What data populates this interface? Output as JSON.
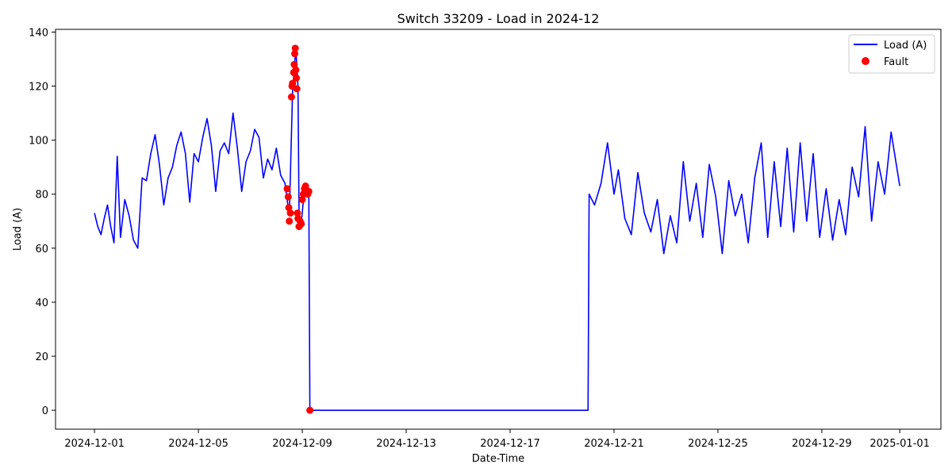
{
  "chart_data": {
    "type": "line",
    "title": "Switch 33209 - Load in 2024-12",
    "xlabel": "Date-Time",
    "ylabel": "Load (A)",
    "xlim": [
      "2024-11-29T12:00",
      "2025-01-02T14:00"
    ],
    "ylim": [
      -7,
      141
    ],
    "x_ticks": [
      "2024-12-01",
      "2024-12-05",
      "2024-12-09",
      "2024-12-13",
      "2024-12-17",
      "2024-12-21",
      "2024-12-25",
      "2024-12-29",
      "2025-01-01"
    ],
    "y_ticks": [
      0,
      20,
      40,
      60,
      80,
      100,
      120,
      140
    ],
    "grid": false,
    "legend_position": "top-right",
    "legend": [
      "Load (A)",
      "Fault"
    ],
    "colors": {
      "line": "#0000ff",
      "fault": "#ff0000"
    },
    "series": [
      {
        "name": "Load (A)",
        "style": "line",
        "points": [
          [
            "2024-12-01T00:00",
            73
          ],
          [
            "2024-12-01T03:00",
            68
          ],
          [
            "2024-12-01T06:00",
            65
          ],
          [
            "2024-12-01T09:00",
            71
          ],
          [
            "2024-12-01T12:00",
            76
          ],
          [
            "2024-12-01T15:00",
            68
          ],
          [
            "2024-12-01T18:00",
            62
          ],
          [
            "2024-12-01T21:00",
            94
          ],
          [
            "2024-12-02T00:00",
            64
          ],
          [
            "2024-12-02T04:00",
            78
          ],
          [
            "2024-12-02T08:00",
            72
          ],
          [
            "2024-12-02T12:00",
            63
          ],
          [
            "2024-12-02T16:00",
            60
          ],
          [
            "2024-12-02T20:00",
            86
          ],
          [
            "2024-12-03T00:00",
            85
          ],
          [
            "2024-12-03T04:00",
            95
          ],
          [
            "2024-12-03T08:00",
            102
          ],
          [
            "2024-12-03T12:00",
            91
          ],
          [
            "2024-12-03T16:00",
            76
          ],
          [
            "2024-12-03T20:00",
            86
          ],
          [
            "2024-12-04T00:00",
            90
          ],
          [
            "2024-12-04T04:00",
            98
          ],
          [
            "2024-12-04T08:00",
            103
          ],
          [
            "2024-12-04T12:00",
            95
          ],
          [
            "2024-12-04T16:00",
            77
          ],
          [
            "2024-12-04T20:00",
            95
          ],
          [
            "2024-12-05T00:00",
            92
          ],
          [
            "2024-12-05T04:00",
            101
          ],
          [
            "2024-12-05T08:00",
            108
          ],
          [
            "2024-12-05T12:00",
            98
          ],
          [
            "2024-12-05T16:00",
            81
          ],
          [
            "2024-12-05T20:00",
            96
          ],
          [
            "2024-12-06T00:00",
            99
          ],
          [
            "2024-12-06T04:00",
            95
          ],
          [
            "2024-12-06T08:00",
            110
          ],
          [
            "2024-12-06T12:00",
            97
          ],
          [
            "2024-12-06T16:00",
            81
          ],
          [
            "2024-12-06T20:00",
            92
          ],
          [
            "2024-12-07T00:00",
            96
          ],
          [
            "2024-12-07T04:00",
            104
          ],
          [
            "2024-12-07T08:00",
            101
          ],
          [
            "2024-12-07T12:00",
            86
          ],
          [
            "2024-12-07T16:00",
            93
          ],
          [
            "2024-12-07T20:00",
            89
          ],
          [
            "2024-12-08T00:00",
            97
          ],
          [
            "2024-12-08T04:00",
            87
          ],
          [
            "2024-12-08T08:00",
            84
          ],
          [
            "2024-12-08T12:00",
            72
          ],
          [
            "2024-12-08T15:00",
            118
          ],
          [
            "2024-12-08T18:00",
            134
          ],
          [
            "2024-12-08T20:00",
            120
          ],
          [
            "2024-12-08T21:00",
            72
          ],
          [
            "2024-12-08T23:00",
            69
          ],
          [
            "2024-12-09T02:00",
            82
          ],
          [
            "2024-12-09T04:00",
            80
          ],
          [
            "2024-12-09T06:00",
            82
          ],
          [
            "2024-12-09T07:00",
            0
          ],
          [
            "2024-12-10T00:00",
            0
          ],
          [
            "2024-12-14T00:00",
            0
          ],
          [
            "2024-12-18T00:00",
            0
          ],
          [
            "2024-12-19T00:00",
            0
          ],
          [
            "2024-12-19T12:00",
            0
          ],
          [
            "2024-12-20T00:00",
            0
          ],
          [
            "2024-12-20T01:00",
            80
          ],
          [
            "2024-12-20T06:00",
            76
          ],
          [
            "2024-12-20T12:00",
            84
          ],
          [
            "2024-12-20T18:00",
            99
          ],
          [
            "2024-12-21T00:00",
            80
          ],
          [
            "2024-12-21T04:00",
            89
          ],
          [
            "2024-12-21T10:00",
            71
          ],
          [
            "2024-12-21T16:00",
            65
          ],
          [
            "2024-12-21T22:00",
            88
          ],
          [
            "2024-12-22T04:00",
            73
          ],
          [
            "2024-12-22T10:00",
            66
          ],
          [
            "2024-12-22T16:00",
            78
          ],
          [
            "2024-12-22T22:00",
            58
          ],
          [
            "2024-12-23T04:00",
            72
          ],
          [
            "2024-12-23T10:00",
            62
          ],
          [
            "2024-12-23T16:00",
            92
          ],
          [
            "2024-12-23T22:00",
            70
          ],
          [
            "2024-12-24T04:00",
            84
          ],
          [
            "2024-12-24T10:00",
            64
          ],
          [
            "2024-12-24T16:00",
            91
          ],
          [
            "2024-12-24T22:00",
            79
          ],
          [
            "2024-12-25T04:00",
            58
          ],
          [
            "2024-12-25T10:00",
            85
          ],
          [
            "2024-12-25T16:00",
            72
          ],
          [
            "2024-12-25T22:00",
            80
          ],
          [
            "2024-12-26T04:00",
            62
          ],
          [
            "2024-12-26T10:00",
            86
          ],
          [
            "2024-12-26T16:00",
            99
          ],
          [
            "2024-12-26T22:00",
            64
          ],
          [
            "2024-12-27T04:00",
            92
          ],
          [
            "2024-12-27T10:00",
            68
          ],
          [
            "2024-12-27T16:00",
            97
          ],
          [
            "2024-12-27T22:00",
            66
          ],
          [
            "2024-12-28T04:00",
            99
          ],
          [
            "2024-12-28T10:00",
            70
          ],
          [
            "2024-12-28T16:00",
            95
          ],
          [
            "2024-12-28T22:00",
            64
          ],
          [
            "2024-12-29T04:00",
            82
          ],
          [
            "2024-12-29T10:00",
            63
          ],
          [
            "2024-12-29T16:00",
            78
          ],
          [
            "2024-12-29T22:00",
            65
          ],
          [
            "2024-12-30T04:00",
            90
          ],
          [
            "2024-12-30T10:00",
            79
          ],
          [
            "2024-12-30T16:00",
            105
          ],
          [
            "2024-12-30T22:00",
            70
          ],
          [
            "2024-12-31T04:00",
            92
          ],
          [
            "2024-12-31T10:00",
            80
          ],
          [
            "2024-12-31T16:00",
            103
          ],
          [
            "2024-12-31T22:00",
            88
          ],
          [
            "2025-01-01T00:00",
            83
          ]
        ]
      },
      {
        "name": "Fault",
        "style": "scatter",
        "points": [
          [
            "2024-12-08T10:00",
            82
          ],
          [
            "2024-12-08T11:00",
            79
          ],
          [
            "2024-12-08T11:30",
            75
          ],
          [
            "2024-12-08T12:00",
            70
          ],
          [
            "2024-12-08T13:00",
            73
          ],
          [
            "2024-12-08T14:00",
            116
          ],
          [
            "2024-12-08T14:30",
            120
          ],
          [
            "2024-12-08T15:00",
            121
          ],
          [
            "2024-12-08T16:00",
            125
          ],
          [
            "2024-12-08T16:30",
            128
          ],
          [
            "2024-12-08T17:00",
            132
          ],
          [
            "2024-12-08T17:30",
            134
          ],
          [
            "2024-12-08T18:00",
            126
          ],
          [
            "2024-12-08T18:30",
            123
          ],
          [
            "2024-12-08T19:00",
            119
          ],
          [
            "2024-12-08T19:30",
            73
          ],
          [
            "2024-12-08T20:00",
            71
          ],
          [
            "2024-12-08T21:00",
            68
          ],
          [
            "2024-12-08T22:00",
            70
          ],
          [
            "2024-12-08T23:00",
            69
          ],
          [
            "2024-12-09T00:00",
            78
          ],
          [
            "2024-12-09T01:00",
            80
          ],
          [
            "2024-12-09T02:00",
            82
          ],
          [
            "2024-12-09T03:00",
            83
          ],
          [
            "2024-12-09T04:00",
            81
          ],
          [
            "2024-12-09T05:00",
            80
          ],
          [
            "2024-12-09T06:00",
            81
          ],
          [
            "2024-12-09T07:00",
            0
          ]
        ]
      }
    ]
  }
}
